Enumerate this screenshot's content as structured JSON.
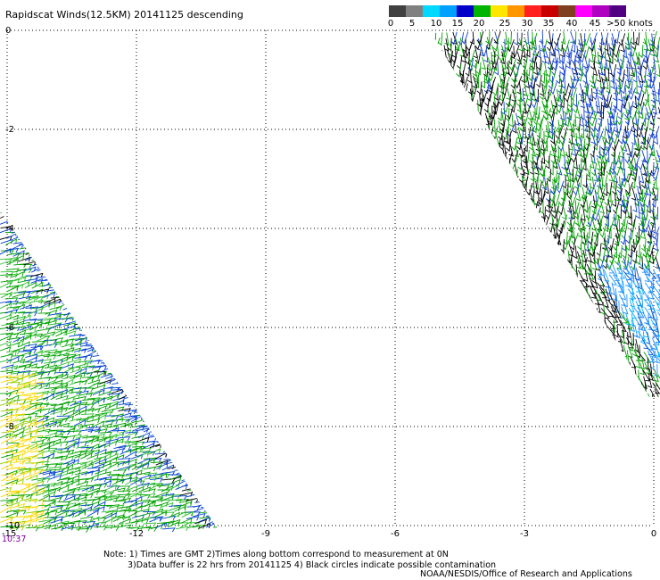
{
  "title": "Rapidscat Winds(12.5KM) 20141125 descending",
  "legend": {
    "labels": [
      "0",
      "5",
      "10",
      "15",
      "20",
      "25",
      "30",
      "35",
      "40",
      "45",
      ">50 knots"
    ],
    "colors": [
      "#404040",
      "#808080",
      "#00d8ff",
      "#00a0ff",
      "#0000c8",
      "#00b400",
      "#ffe600",
      "#ff9600",
      "#ff2020",
      "#c80000",
      "#804020",
      "#ff00ff",
      "#b000c0",
      "#500080"
    ]
  },
  "axes": {
    "x_ticks": [
      "-15",
      "-12",
      "-9",
      "-6",
      "-3",
      "0"
    ],
    "y_ticks": [
      "0",
      "-2",
      "-4",
      "-6",
      "-8",
      "-10"
    ]
  },
  "timestamp": "10:37",
  "notes": [
    "Note: 1) Times are GMT 2)Times along bottom correspond to measurement at 0N",
    "3)Data buffer is 22 hrs from 20141125 4) Black circles indicate possible contamination"
  ],
  "credit": "NOAA/NESDIS/Office of Research and Applications"
}
